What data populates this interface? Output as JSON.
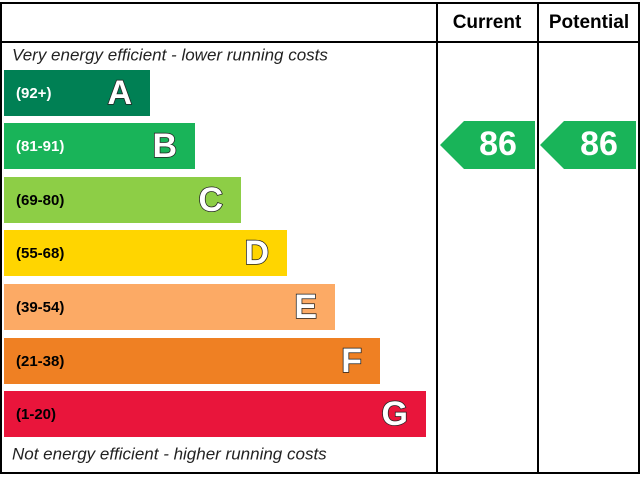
{
  "header": {
    "current": "Current",
    "potential": "Potential"
  },
  "top_note": "Very energy efficient - lower running costs",
  "bottom_note": "Not energy efficient - higher running costs",
  "bands": [
    {
      "range": "(92+)",
      "letter": "A"
    },
    {
      "range": "(81-91)",
      "letter": "B"
    },
    {
      "range": "(69-80)",
      "letter": "C"
    },
    {
      "range": "(55-68)",
      "letter": "D"
    },
    {
      "range": "(39-54)",
      "letter": "E"
    },
    {
      "range": "(21-38)",
      "letter": "F"
    },
    {
      "range": "(1-20)",
      "letter": "G"
    }
  ],
  "current": {
    "value": 86
  },
  "potential": {
    "value": 86
  }
}
